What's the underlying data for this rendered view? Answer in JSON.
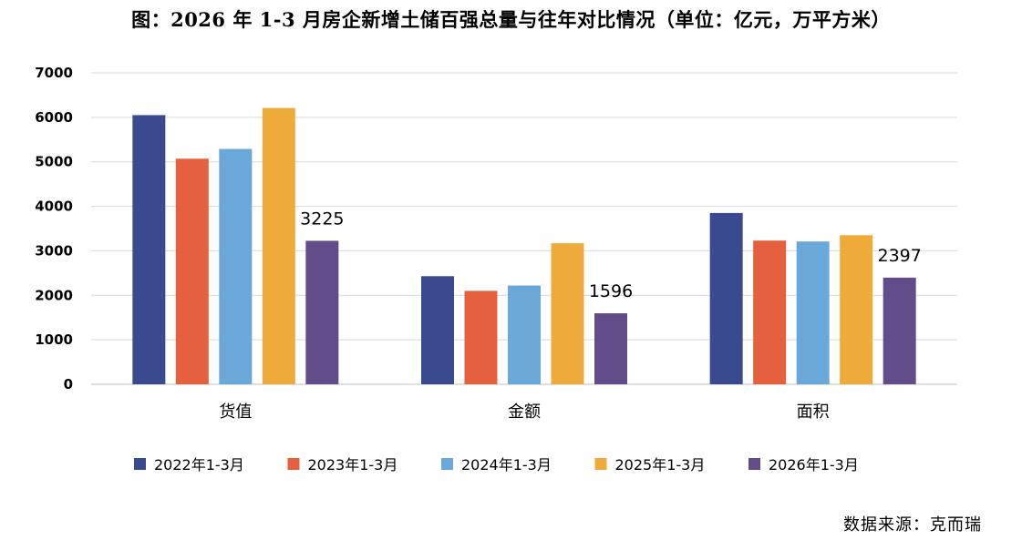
{
  "title": "图：2026 年 1-3 月房企新增土储百强总量与往年对比情况（单位：亿元，万平方米）",
  "source": "数据来源：克而瑞",
  "chart_data": {
    "type": "bar",
    "title": "图：2026 年 1-3 月房企新增土储百强总量与往年对比情况（单位：亿元，万平方米）",
    "categories": [
      "货值",
      "金额",
      "面积"
    ],
    "ylim": [
      0,
      7000
    ],
    "yticks": [
      "0",
      "1000",
      "2000",
      "3000",
      "4000",
      "5000",
      "6000",
      "7000"
    ],
    "grid": true,
    "legend_position": "bottom",
    "series": [
      {
        "name": "2022年1-3月",
        "color": "#3A4A8F",
        "values": [
          6050,
          2430,
          3850
        ]
      },
      {
        "name": "2023年1-3月",
        "color": "#E4603F",
        "values": [
          5070,
          2100,
          3230
        ]
      },
      {
        "name": "2024年1-3月",
        "color": "#6AA8DA",
        "values": [
          5290,
          2220,
          3210
        ]
      },
      {
        "name": "2025年1-3月",
        "color": "#EFAB3A",
        "values": [
          6210,
          3170,
          3350
        ]
      },
      {
        "name": "2026年1-3月",
        "color": "#624C8A",
        "values": [
          3225,
          1596,
          2397
        ]
      }
    ],
    "data_labels": {
      "series_index": 4,
      "texts": [
        "3225",
        "1596",
        "2397"
      ]
    }
  }
}
